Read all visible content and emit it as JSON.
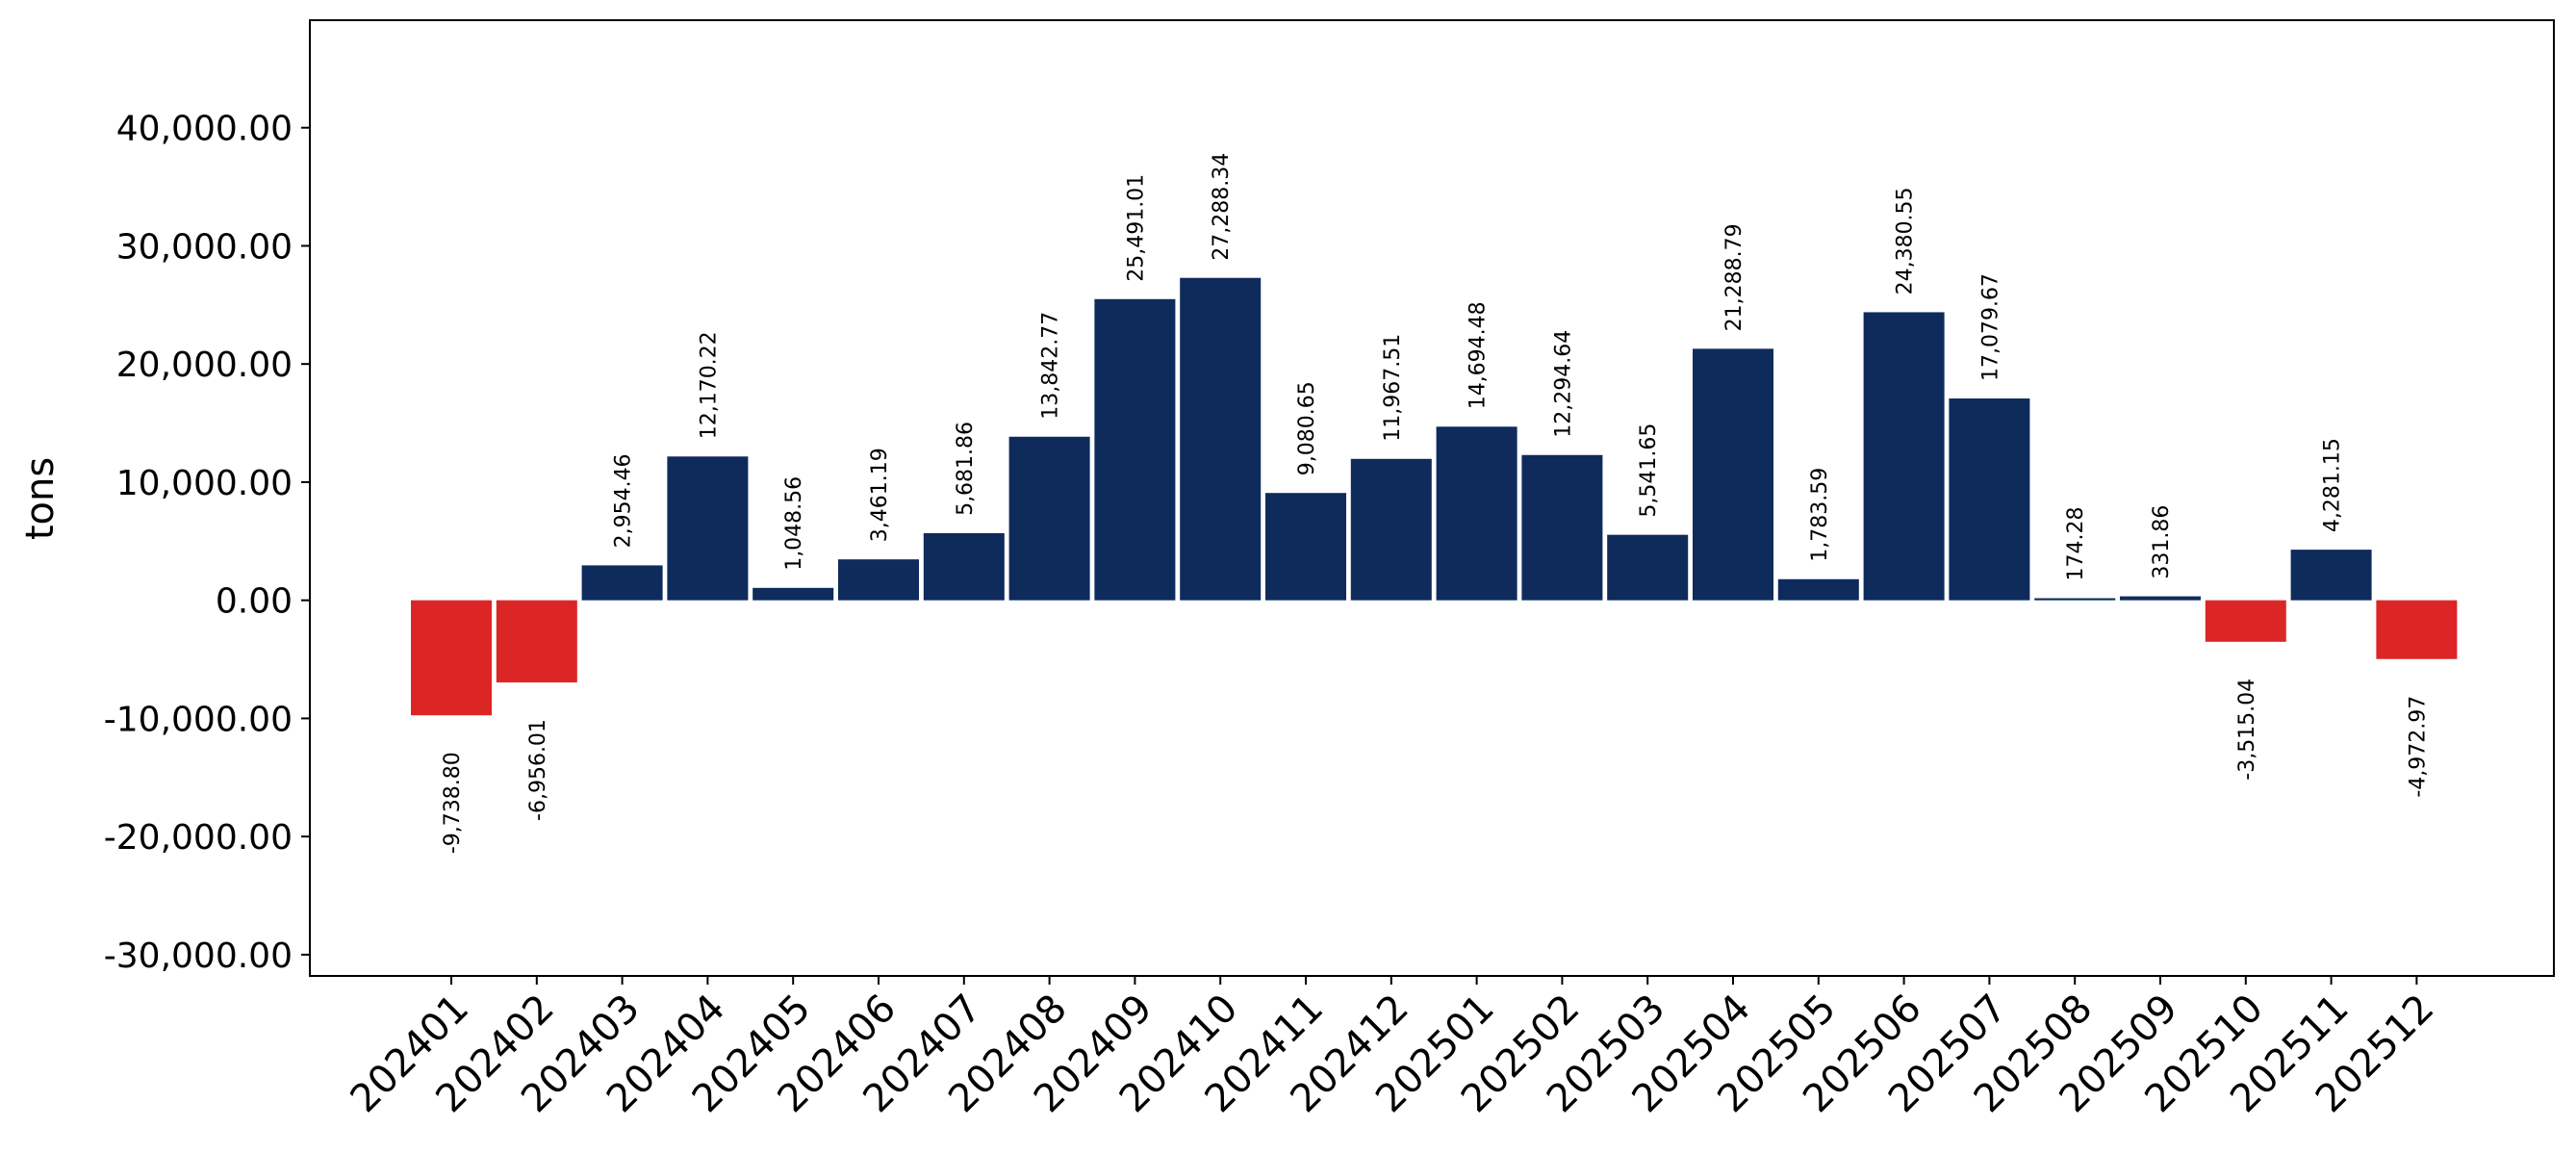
{
  "chart_data": {
    "type": "bar",
    "title": "",
    "xlabel": "",
    "ylabel": "tons",
    "categories": [
      "202401",
      "202402",
      "202403",
      "202404",
      "202405",
      "202406",
      "202407",
      "202408",
      "202409",
      "202410",
      "202411",
      "202412",
      "202501",
      "202502",
      "202503",
      "202504",
      "202505",
      "202506",
      "202507",
      "202508",
      "202509",
      "202510",
      "202511",
      "202512"
    ],
    "values": [
      -9738.8,
      -6956.01,
      2954.46,
      12170.22,
      1048.56,
      3461.19,
      5681.86,
      13842.77,
      25491.01,
      27288.34,
      9080.65,
      11967.51,
      14694.48,
      12294.64,
      5541.65,
      21288.79,
      1783.59,
      24380.55,
      17079.67,
      174.28,
      331.86,
      -3515.04,
      4281.15,
      -4972.97
    ],
    "data_labels": [
      "-9,738.80",
      "-6,956.01",
      "2,954.46",
      "12,170.22",
      "1,048.56",
      "3,461.19",
      "5,681.86",
      "13,842.77",
      "25,491.01",
      "27,288.34",
      "9,080.65",
      "11,967.51",
      "14,694.48",
      "12,294.64",
      "5,541.65",
      "21,288.79",
      "1,783.59",
      "24,380.55",
      "17,079.67",
      "174.28",
      "331.86",
      "-3,515.04",
      "4,281.15",
      "-4,972.97"
    ],
    "y_ticks": [
      -30000,
      -20000,
      -10000,
      0,
      10000,
      20000,
      30000,
      40000
    ],
    "y_tick_labels": [
      "-30,000.00",
      "-20,000.00",
      "-10,000.00",
      "0.00",
      "10,000.00",
      "20,000.00",
      "30,000.00",
      "40,000.00"
    ],
    "ylim": [
      -31800,
      49100
    ],
    "grid": false,
    "colors": {
      "positive": "#0e2b5c",
      "negative": "#dc2626"
    }
  }
}
